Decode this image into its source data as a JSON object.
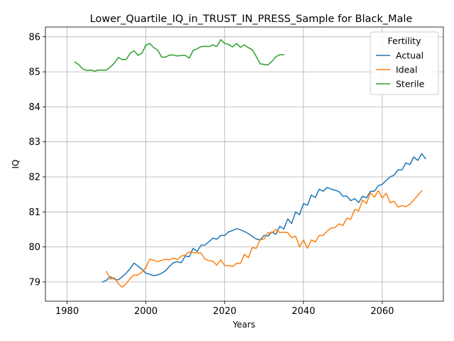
{
  "chart_data": {
    "type": "line",
    "title": "Lower_Quartile_IQ_in_TRUST_IN_PRESS_Sample for Black_Male",
    "xlabel": "Years",
    "ylabel": "IQ",
    "xlim": [
      1974.5,
      2075.5
    ],
    "ylim": [
      78.45,
      86.28
    ],
    "xticks": [
      1980,
      2000,
      2020,
      2040,
      2060
    ],
    "yticks": [
      79,
      80,
      81,
      82,
      83,
      84,
      85,
      86
    ],
    "grid": true,
    "legend": {
      "title": "Fertility",
      "placement": "top-right",
      "entries": [
        "Actual",
        "Ideal",
        "Sterile"
      ]
    },
    "series": [
      {
        "name": "Actual",
        "color": "#1f77b4",
        "x": [
          1989,
          1990,
          1991,
          1992,
          1993,
          1994,
          1995,
          1996,
          1997,
          1998,
          1999,
          2000,
          2001,
          2002,
          2003,
          2004,
          2005,
          2006,
          2007,
          2008,
          2009,
          2010,
          2011,
          2012,
          2013,
          2014,
          2015,
          2016,
          2017,
          2018,
          2019,
          2020,
          2021,
          2022,
          2023,
          2024,
          2025,
          2026,
          2027,
          2028,
          2029,
          2030,
          2031,
          2032,
          2033,
          2034,
          2035,
          2036,
          2037,
          2038,
          2039,
          2040,
          2041,
          2042,
          2043,
          2044,
          2045,
          2046,
          2047,
          2048,
          2049,
          2050,
          2051,
          2052,
          2053,
          2054,
          2055,
          2056,
          2057,
          2058,
          2059,
          2060,
          2061,
          2062,
          2063,
          2064,
          2065,
          2066,
          2067,
          2068,
          2069,
          2070,
          2071
        ],
        "y": [
          79.0,
          79.05,
          79.15,
          79.08,
          79.06,
          79.15,
          79.25,
          79.38,
          79.54,
          79.45,
          79.36,
          79.25,
          79.22,
          79.18,
          79.2,
          79.25,
          79.32,
          79.45,
          79.55,
          79.58,
          79.55,
          79.74,
          79.72,
          79.96,
          79.87,
          80.05,
          80.05,
          80.15,
          80.25,
          80.22,
          80.33,
          80.33,
          80.43,
          80.47,
          80.52,
          80.49,
          80.44,
          80.38,
          80.3,
          80.23,
          80.2,
          80.33,
          80.31,
          80.43,
          80.36,
          80.59,
          80.51,
          80.8,
          80.67,
          81.0,
          80.92,
          81.24,
          81.19,
          81.48,
          81.41,
          81.65,
          81.59,
          81.7,
          81.65,
          81.62,
          81.58,
          81.45,
          81.45,
          81.32,
          81.38,
          81.27,
          81.45,
          81.4,
          81.59,
          81.59,
          81.75,
          81.79,
          81.9,
          82.0,
          82.05,
          82.2,
          82.2,
          82.4,
          82.35,
          82.57,
          82.47,
          82.66,
          82.52
        ]
      },
      {
        "name": "Ideal",
        "color": "#ff7f0e",
        "x": [
          1990,
          1991,
          1992,
          1993,
          1994,
          1995,
          1996,
          1997,
          1998,
          1999,
          2000,
          2001,
          2002,
          2003,
          2004,
          2005,
          2006,
          2007,
          2008,
          2009,
          2010,
          2011,
          2012,
          2013,
          2014,
          2015,
          2016,
          2017,
          2018,
          2019,
          2020,
          2021,
          2022,
          2023,
          2024,
          2025,
          2026,
          2027,
          2028,
          2029,
          2030,
          2031,
          2032,
          2033,
          2034,
          2035,
          2036,
          2037,
          2038,
          2039,
          2040,
          2041,
          2042,
          2043,
          2044,
          2045,
          2046,
          2047,
          2048,
          2049,
          2050,
          2051,
          2052,
          2053,
          2054,
          2055,
          2056,
          2057,
          2058,
          2059,
          2060,
          2061,
          2062,
          2063,
          2064,
          2065,
          2066,
          2067,
          2068,
          2069,
          2070
        ],
        "y": [
          79.3,
          79.08,
          79.12,
          78.95,
          78.85,
          78.95,
          79.1,
          79.2,
          79.2,
          79.28,
          79.42,
          79.65,
          79.62,
          79.58,
          79.62,
          79.65,
          79.63,
          79.68,
          79.64,
          79.74,
          79.77,
          79.86,
          79.84,
          79.83,
          79.83,
          79.65,
          79.61,
          79.59,
          79.48,
          79.63,
          79.47,
          79.47,
          79.44,
          79.53,
          79.53,
          79.79,
          79.69,
          79.98,
          79.96,
          80.2,
          80.23,
          80.41,
          80.4,
          80.5,
          80.41,
          80.42,
          80.41,
          80.26,
          80.31,
          80.0,
          80.2,
          79.96,
          80.2,
          80.14,
          80.33,
          80.33,
          80.45,
          80.54,
          80.55,
          80.66,
          80.61,
          80.82,
          80.79,
          81.07,
          81.03,
          81.34,
          81.24,
          81.55,
          81.42,
          81.61,
          81.4,
          81.53,
          81.26,
          81.3,
          81.14,
          81.18,
          81.15,
          81.22,
          81.34,
          81.47,
          81.6
        ]
      },
      {
        "name": "Sterile",
        "color": "#2ca02c",
        "x": [
          1982,
          1983,
          1984,
          1985,
          1986,
          1987,
          1988,
          1989,
          1990,
          1991,
          1992,
          1993,
          1994,
          1995,
          1996,
          1997,
          1998,
          1999,
          2000,
          2001,
          2002,
          2003,
          2004,
          2005,
          2006,
          2007,
          2008,
          2009,
          2010,
          2011,
          2012,
          2013,
          2014,
          2015,
          2016,
          2017,
          2018,
          2019,
          2020,
          2021,
          2022,
          2023,
          2024,
          2025,
          2026,
          2027,
          2028,
          2029,
          2030,
          2031,
          2032,
          2033,
          2034,
          2035
        ],
        "y": [
          85.28,
          85.2,
          85.08,
          85.04,
          85.05,
          85.02,
          85.05,
          85.05,
          85.05,
          85.14,
          85.25,
          85.41,
          85.35,
          85.35,
          85.53,
          85.6,
          85.47,
          85.53,
          85.76,
          85.81,
          85.69,
          85.62,
          85.42,
          85.42,
          85.48,
          85.48,
          85.45,
          85.47,
          85.47,
          85.39,
          85.61,
          85.66,
          85.72,
          85.73,
          85.72,
          85.77,
          85.72,
          85.92,
          85.81,
          85.78,
          85.71,
          85.81,
          85.7,
          85.77,
          85.69,
          85.63,
          85.44,
          85.23,
          85.21,
          85.2,
          85.3,
          85.43,
          85.49,
          85.49
        ]
      }
    ]
  }
}
